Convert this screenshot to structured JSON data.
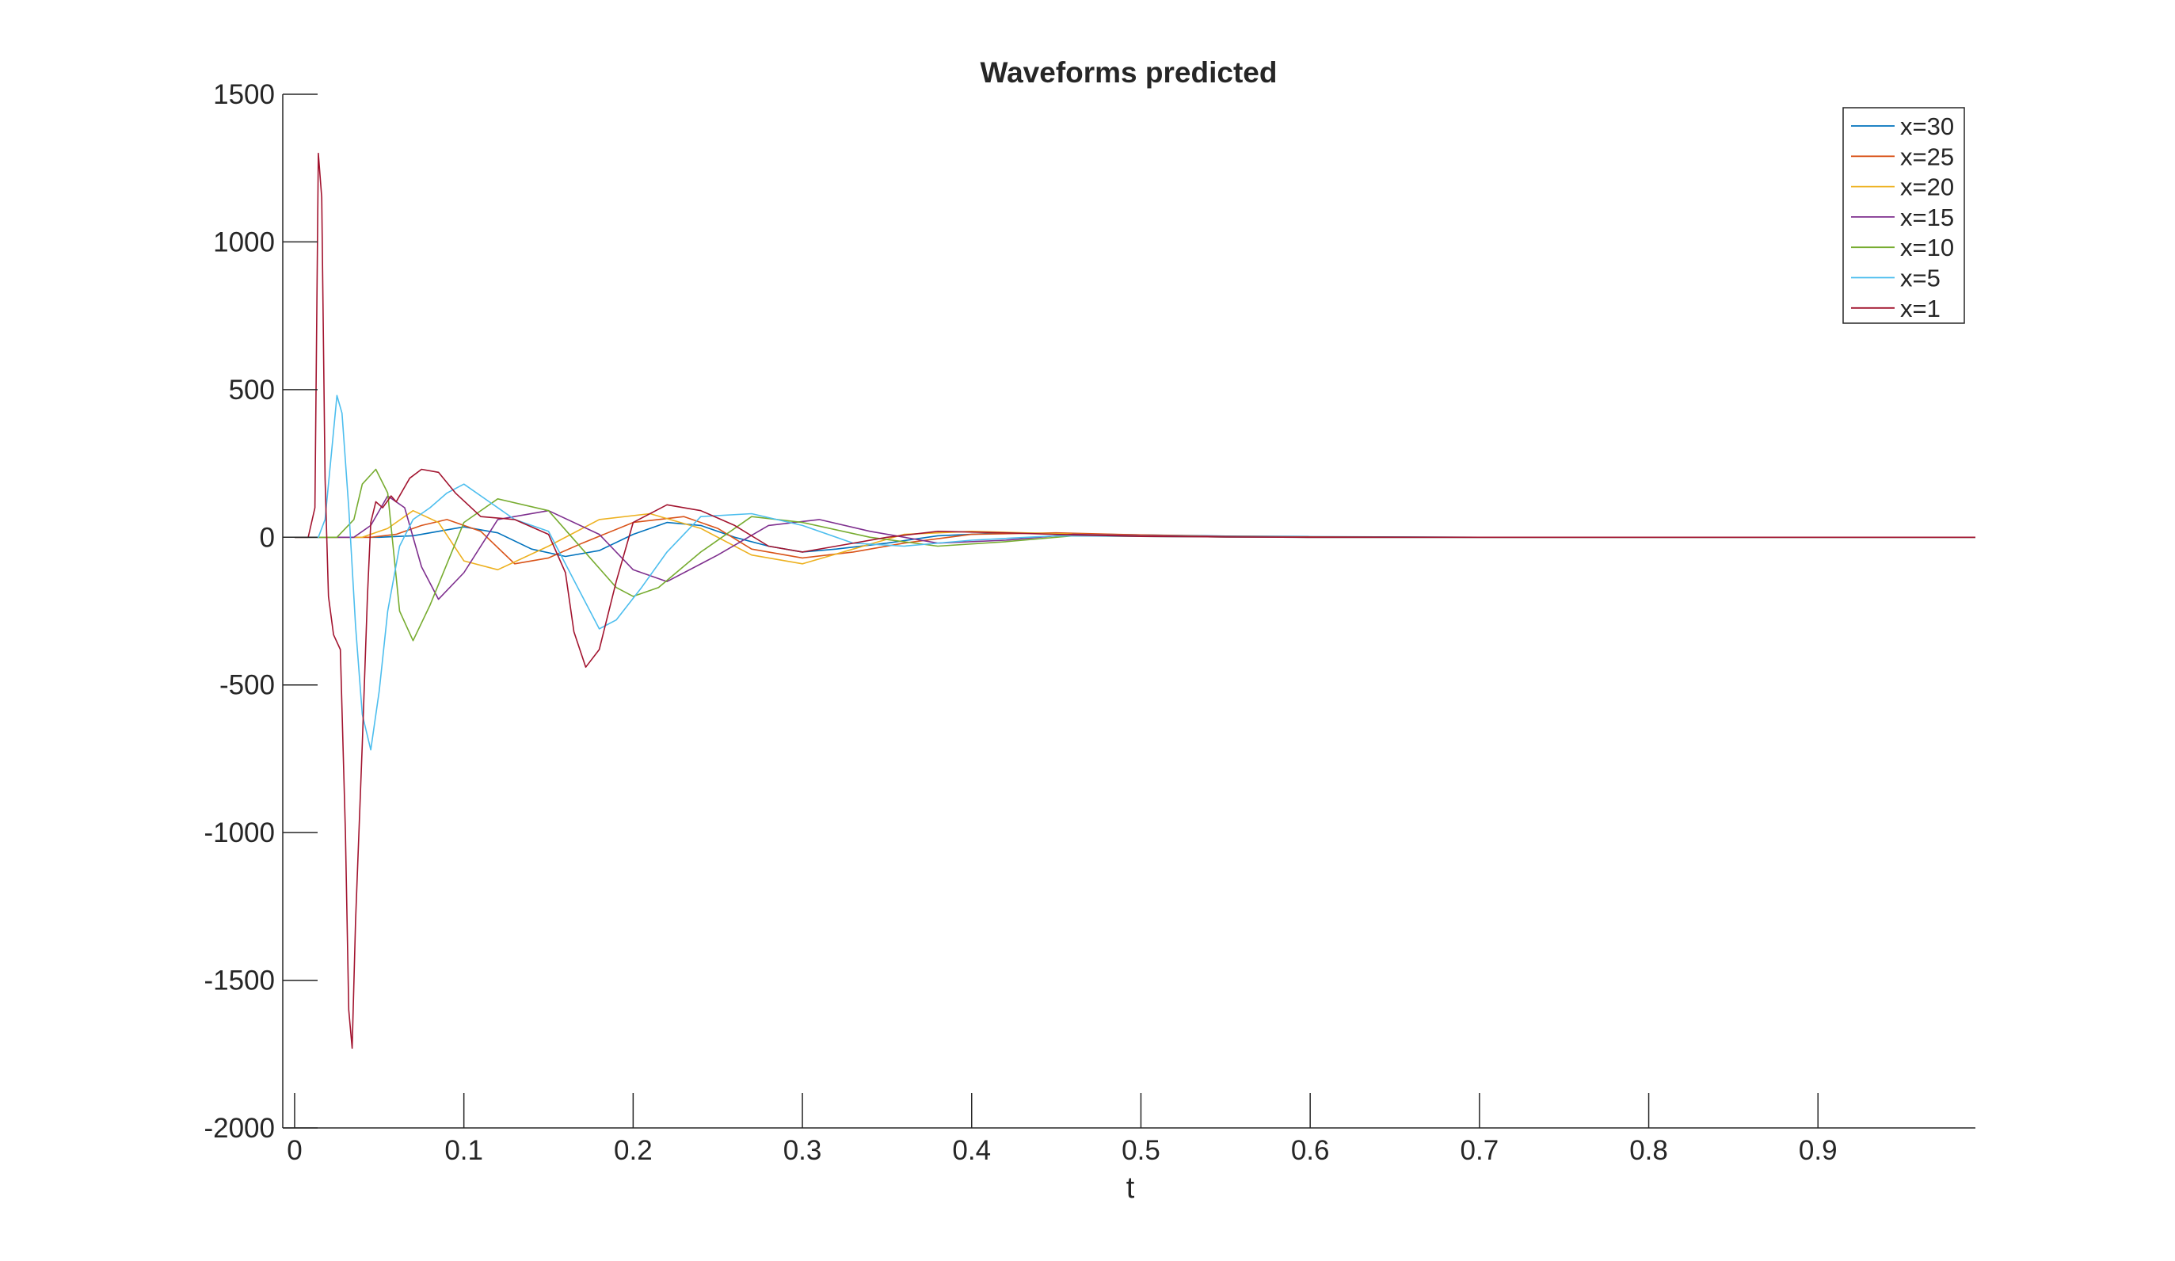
{
  "chart_data": {
    "type": "line",
    "title": "Waveforms predicted",
    "xlabel": "t",
    "ylabel": "",
    "xlim": [
      -0.007,
      0.993
    ],
    "ylim": [
      -2000,
      1500
    ],
    "xticks": [
      0,
      0.1,
      0.2,
      0.3,
      0.4,
      0.5,
      0.6,
      0.7,
      0.8,
      0.9
    ],
    "xtick_labels": [
      "0",
      "0.1",
      "0.2",
      "0.3",
      "0.4",
      "0.5",
      "0.6",
      "0.7",
      "0.8",
      "0.9"
    ],
    "yticks": [
      1500,
      1000,
      500,
      0,
      -500,
      -1000,
      -1500,
      -2000
    ],
    "ytick_labels": [
      "1500",
      "1000",
      "500",
      "0",
      "-500",
      "-1000",
      "-1500",
      "-2000"
    ],
    "grid": false,
    "legend_position": "top-right",
    "series": [
      {
        "name": "x=30",
        "color": "#0072BD",
        "x": [
          0,
          0.05,
          0.07,
          0.085,
          0.1,
          0.12,
          0.14,
          0.16,
          0.18,
          0.2,
          0.22,
          0.24,
          0.26,
          0.28,
          0.3,
          0.32,
          0.35,
          0.38,
          0.42,
          0.46,
          0.5,
          0.55,
          0.6,
          0.7,
          0.8,
          0.993
        ],
        "y": [
          0,
          0,
          5,
          20,
          35,
          15,
          -40,
          -65,
          -45,
          10,
          50,
          40,
          0,
          -30,
          -50,
          -40,
          -20,
          5,
          15,
          12,
          8,
          4,
          2,
          0,
          0,
          0
        ]
      },
      {
        "name": "x=25",
        "color": "#D95319",
        "x": [
          0,
          0.045,
          0.06,
          0.075,
          0.09,
          0.11,
          0.13,
          0.15,
          0.17,
          0.2,
          0.23,
          0.25,
          0.27,
          0.3,
          0.33,
          0.36,
          0.4,
          0.45,
          0.5,
          0.55,
          0.6,
          0.7,
          0.993
        ],
        "y": [
          0,
          0,
          10,
          40,
          60,
          20,
          -90,
          -70,
          -20,
          50,
          70,
          30,
          -40,
          -70,
          -50,
          -20,
          10,
          15,
          8,
          3,
          1,
          0,
          0
        ]
      },
      {
        "name": "x=20",
        "color": "#EDB120",
        "x": [
          0,
          0.04,
          0.055,
          0.07,
          0.085,
          0.1,
          0.12,
          0.15,
          0.18,
          0.21,
          0.24,
          0.27,
          0.3,
          0.33,
          0.36,
          0.4,
          0.45,
          0.5,
          0.55,
          0.6,
          0.7,
          0.993
        ],
        "y": [
          0,
          0,
          30,
          90,
          50,
          -80,
          -110,
          -30,
          60,
          80,
          30,
          -60,
          -90,
          -40,
          10,
          20,
          12,
          5,
          2,
          0,
          0,
          0
        ]
      },
      {
        "name": "x=15",
        "color": "#7E2F8E",
        "x": [
          0,
          0.035,
          0.045,
          0.055,
          0.065,
          0.075,
          0.085,
          0.1,
          0.12,
          0.15,
          0.18,
          0.2,
          0.22,
          0.25,
          0.28,
          0.31,
          0.34,
          0.38,
          0.42,
          0.46,
          0.5,
          0.55,
          0.6,
          0.7,
          0.993
        ],
        "y": [
          0,
          0,
          40,
          140,
          100,
          -100,
          -210,
          -120,
          60,
          90,
          10,
          -110,
          -150,
          -60,
          40,
          60,
          20,
          -20,
          -10,
          10,
          5,
          2,
          0,
          0,
          0
        ]
      },
      {
        "name": "x=10",
        "color": "#77AC30",
        "x": [
          0,
          0.025,
          0.035,
          0.04,
          0.048,
          0.055,
          0.062,
          0.07,
          0.08,
          0.1,
          0.12,
          0.15,
          0.17,
          0.19,
          0.2,
          0.215,
          0.24,
          0.27,
          0.3,
          0.34,
          0.38,
          0.42,
          0.46,
          0.5,
          0.55,
          0.6,
          0.7,
          0.993
        ],
        "y": [
          0,
          0,
          60,
          180,
          230,
          150,
          -250,
          -350,
          -230,
          50,
          130,
          90,
          -40,
          -170,
          -200,
          -170,
          -50,
          70,
          50,
          0,
          -30,
          -15,
          5,
          3,
          1,
          0,
          0,
          0
        ]
      },
      {
        "name": "x=5",
        "color": "#4DBEEE",
        "x": [
          0,
          0.014,
          0.018,
          0.022,
          0.025,
          0.028,
          0.032,
          0.036,
          0.04,
          0.045,
          0.05,
          0.055,
          0.062,
          0.07,
          0.08,
          0.09,
          0.1,
          0.115,
          0.13,
          0.15,
          0.17,
          0.18,
          0.19,
          0.205,
          0.22,
          0.24,
          0.27,
          0.3,
          0.33,
          0.36,
          0.4,
          0.45,
          0.5,
          0.55,
          0.6,
          0.7,
          0.993
        ],
        "y": [
          0,
          0,
          60,
          300,
          480,
          420,
          100,
          -300,
          -600,
          -720,
          -520,
          -250,
          -30,
          60,
          100,
          150,
          180,
          120,
          60,
          20,
          -200,
          -310,
          -280,
          -170,
          -50,
          70,
          80,
          40,
          -20,
          -30,
          -10,
          5,
          3,
          1,
          0,
          0,
          0
        ]
      },
      {
        "name": "x=1",
        "color": "#A2142F",
        "x": [
          0,
          0.008,
          0.012,
          0.014,
          0.016,
          0.018,
          0.02,
          0.023,
          0.027,
          0.03,
          0.032,
          0.034,
          0.036,
          0.04,
          0.043,
          0.045,
          0.048,
          0.052,
          0.057,
          0.06,
          0.064,
          0.068,
          0.075,
          0.085,
          0.095,
          0.11,
          0.13,
          0.15,
          0.16,
          0.165,
          0.172,
          0.18,
          0.19,
          0.2,
          0.22,
          0.24,
          0.26,
          0.28,
          0.3,
          0.32,
          0.35,
          0.38,
          0.42,
          0.46,
          0.5,
          0.55,
          0.6,
          0.7,
          0.993
        ],
        "y": [
          0,
          0,
          100,
          1300,
          1150,
          200,
          -200,
          -330,
          -380,
          -1000,
          -1600,
          -1730,
          -1300,
          -700,
          -200,
          50,
          120,
          100,
          140,
          120,
          160,
          200,
          230,
          220,
          150,
          70,
          60,
          10,
          -120,
          -320,
          -440,
          -380,
          -150,
          50,
          110,
          90,
          40,
          -30,
          -50,
          -30,
          0,
          20,
          15,
          8,
          3,
          1,
          0,
          0,
          0
        ]
      }
    ]
  }
}
